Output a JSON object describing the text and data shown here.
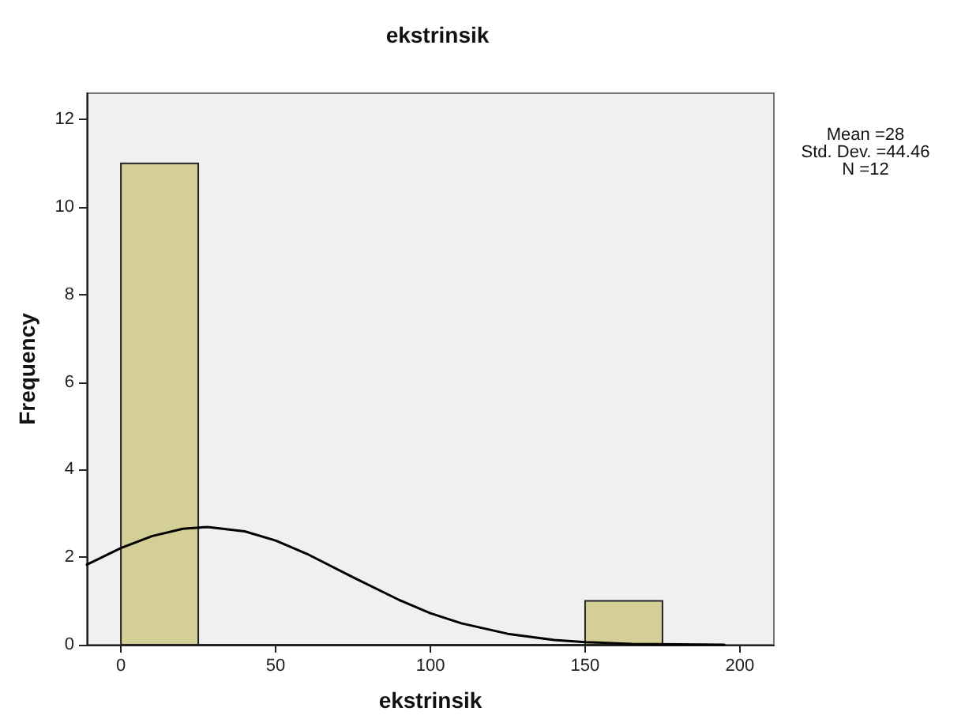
{
  "chart_data": {
    "type": "histogram",
    "title": "ekstrinsik",
    "xlabel": "ekstrinsik",
    "ylabel": "Frequency",
    "series": [
      {
        "color": "#d3cf97",
        "bins": [
          0,
          25,
          50,
          75,
          100,
          125,
          150,
          175
        ],
        "values": [
          11,
          0,
          0,
          0,
          0,
          0,
          1
        ]
      },
      {
        "type": "line",
        "color": "#000000",
        "x": [
          -11,
          0,
          10,
          20,
          28,
          40,
          50,
          60,
          75,
          90,
          100,
          110,
          125,
          140,
          150,
          165,
          180,
          195
        ],
        "values": [
          1.83,
          2.21,
          2.48,
          2.65,
          2.69,
          2.59,
          2.38,
          2.08,
          1.54,
          1.02,
          0.72,
          0.49,
          0.25,
          0.11,
          0.06,
          0.02,
          0.01,
          0.0
        ]
      }
    ],
    "xlim": [
      -11,
      211
    ],
    "xticks": [
      0,
      50,
      100,
      150,
      200
    ],
    "ylim": [
      0,
      12.6
    ],
    "yticks": [
      0,
      2,
      4,
      6,
      8,
      10,
      12
    ],
    "grid": false,
    "marker": "none",
    "line_style": "solid",
    "annotations": [
      "Mean =28",
      "Std. Dev. =44.46",
      "N =12"
    ]
  }
}
